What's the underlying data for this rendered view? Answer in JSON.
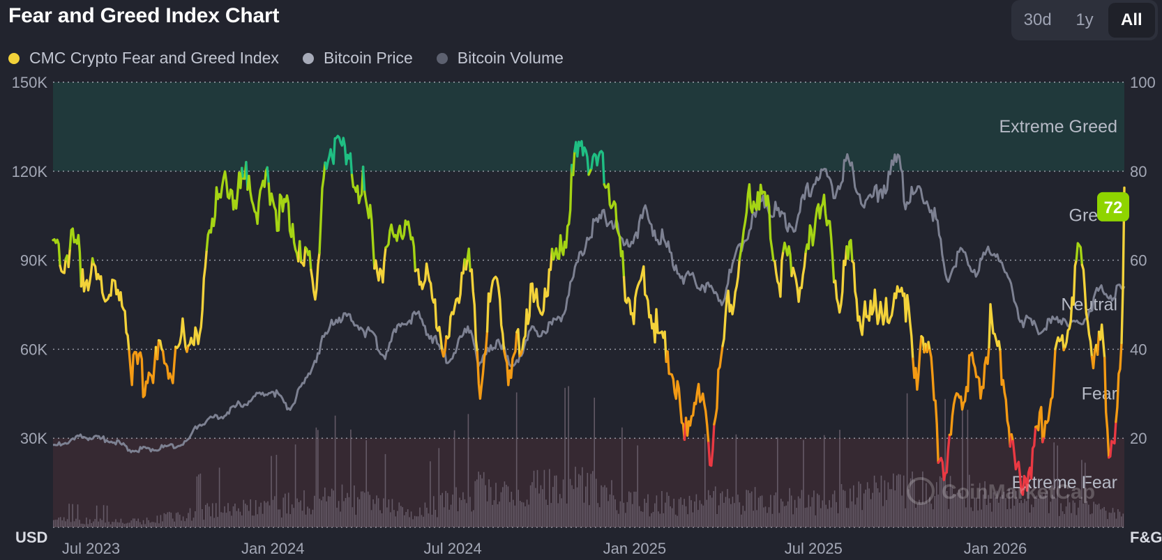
{
  "header": {
    "title": "Fear and Greed Index Chart",
    "ranges": [
      {
        "label": "30d",
        "active": false
      },
      {
        "label": "1y",
        "active": false
      },
      {
        "label": "All",
        "active": true
      }
    ]
  },
  "legend": [
    {
      "label": "CMC Crypto Fear and Greed Index",
      "color": "#f3d23a"
    },
    {
      "label": "Bitcoin Price",
      "color": "#a7abb9"
    },
    {
      "label": "Bitcoin Volume",
      "color": "#5d6170"
    }
  ],
  "watermark": "CoinMarketCap",
  "chart_data": {
    "type": "line",
    "left_axis": {
      "unit": "USD",
      "ticks": [
        "150K",
        "120K",
        "90K",
        "60K",
        "30K"
      ],
      "tick_values": [
        150000,
        120000,
        90000,
        60000,
        30000
      ],
      "range": [
        0,
        150000
      ]
    },
    "right_axis": {
      "unit": "F&G",
      "ticks": [
        "100",
        "80",
        "60",
        "40",
        "20"
      ],
      "tick_values": [
        100,
        80,
        60,
        40,
        20
      ],
      "range": [
        0,
        100
      ]
    },
    "x_ticks": [
      "Jul 2023",
      "Jan 2024",
      "Jul 2024",
      "Jan 2025",
      "Jul 2025",
      "Jan 2026"
    ],
    "x_range": [
      "2023-06-01",
      "2026-05-20"
    ],
    "zones": [
      {
        "label": "Extreme Greed",
        "from": 80,
        "to": 100,
        "color": "#20393b"
      },
      {
        "label": "Greed",
        "from": 60,
        "to": 80,
        "color": ""
      },
      {
        "label": "Neutral",
        "from": 40,
        "to": 60,
        "color": ""
      },
      {
        "label": "Fear",
        "from": 20,
        "to": 40,
        "color": ""
      },
      {
        "label": "Extreme Fear",
        "from": 0,
        "to": 20,
        "color": "#362932"
      }
    ],
    "current_value": "72",
    "current_color": "#8fd400",
    "series": [
      {
        "name": "CMC Crypto Fear and Greed Index",
        "axis": "right",
        "points": [
          [
            "2023-06-01",
            60
          ],
          [
            "2023-06-08",
            63
          ],
          [
            "2023-06-15",
            61
          ],
          [
            "2023-06-22",
            64
          ],
          [
            "2023-07-01",
            58
          ],
          [
            "2023-07-10",
            56
          ],
          [
            "2023-07-20",
            55
          ],
          [
            "2023-08-01",
            52
          ],
          [
            "2023-08-12",
            50
          ],
          [
            "2023-08-20",
            35
          ],
          [
            "2023-09-01",
            34
          ],
          [
            "2023-09-12",
            36
          ],
          [
            "2023-09-20",
            39
          ],
          [
            "2023-10-01",
            36
          ],
          [
            "2023-10-10",
            43
          ],
          [
            "2023-10-20",
            44
          ],
          [
            "2023-10-28",
            40
          ],
          [
            "2023-11-05",
            68
          ],
          [
            "2023-11-15",
            73
          ],
          [
            "2023-11-25",
            77
          ],
          [
            "2023-12-05",
            74
          ],
          [
            "2023-12-15",
            80
          ],
          [
            "2023-12-25",
            72
          ],
          [
            "2024-01-05",
            78
          ],
          [
            "2024-01-15",
            70
          ],
          [
            "2024-01-25",
            72
          ],
          [
            "2024-02-01",
            66
          ],
          [
            "2024-02-08",
            56
          ],
          [
            "2024-02-15",
            60
          ],
          [
            "2024-02-22",
            54
          ],
          [
            "2024-03-01",
            76
          ],
          [
            "2024-03-08",
            84
          ],
          [
            "2024-03-15",
            90
          ],
          [
            "2024-03-22",
            82
          ],
          [
            "2024-04-01",
            78
          ],
          [
            "2024-04-10",
            76
          ],
          [
            "2024-04-20",
            64
          ],
          [
            "2024-04-28",
            58
          ],
          [
            "2024-05-05",
            62
          ],
          [
            "2024-05-15",
            70
          ],
          [
            "2024-05-25",
            64
          ],
          [
            "2024-06-05",
            60
          ],
          [
            "2024-06-15",
            54
          ],
          [
            "2024-06-25",
            46
          ],
          [
            "2024-07-05",
            40
          ],
          [
            "2024-07-12",
            48
          ],
          [
            "2024-07-20",
            62
          ],
          [
            "2024-07-28",
            56
          ],
          [
            "2024-08-05",
            32
          ],
          [
            "2024-08-15",
            48
          ],
          [
            "2024-08-25",
            55
          ],
          [
            "2024-09-05",
            32
          ],
          [
            "2024-09-15",
            42
          ],
          [
            "2024-09-25",
            52
          ],
          [
            "2024-10-05",
            48
          ],
          [
            "2024-10-15",
            58
          ],
          [
            "2024-10-25",
            60
          ],
          [
            "2024-11-01",
            66
          ],
          [
            "2024-11-10",
            82
          ],
          [
            "2024-11-20",
            86
          ],
          [
            "2024-11-30",
            80
          ],
          [
            "2024-12-08",
            82
          ],
          [
            "2024-12-18",
            74
          ],
          [
            "2024-12-28",
            58
          ],
          [
            "2025-01-08",
            50
          ],
          [
            "2025-01-18",
            56
          ],
          [
            "2025-01-28",
            48
          ],
          [
            "2025-02-05",
            40
          ],
          [
            "2025-02-12",
            40
          ],
          [
            "2025-02-20",
            34
          ],
          [
            "2025-02-28",
            18
          ],
          [
            "2025-03-05",
            26
          ],
          [
            "2025-03-12",
            30
          ],
          [
            "2025-03-20",
            25
          ],
          [
            "2025-03-28",
            17
          ],
          [
            "2025-04-05",
            34
          ],
          [
            "2025-04-15",
            50
          ],
          [
            "2025-04-25",
            58
          ],
          [
            "2025-05-05",
            72
          ],
          [
            "2025-05-15",
            76
          ],
          [
            "2025-05-25",
            70
          ],
          [
            "2025-06-05",
            56
          ],
          [
            "2025-06-15",
            62
          ],
          [
            "2025-06-25",
            53
          ],
          [
            "2025-07-05",
            62
          ],
          [
            "2025-07-15",
            74
          ],
          [
            "2025-07-25",
            66
          ],
          [
            "2025-08-05",
            50
          ],
          [
            "2025-08-15",
            62
          ],
          [
            "2025-08-25",
            48
          ],
          [
            "2025-09-05",
            46
          ],
          [
            "2025-09-15",
            52
          ],
          [
            "2025-09-25",
            44
          ],
          [
            "2025-10-05",
            58
          ],
          [
            "2025-10-12",
            50
          ],
          [
            "2025-10-20",
            30
          ],
          [
            "2025-10-28",
            46
          ],
          [
            "2025-11-05",
            36
          ],
          [
            "2025-11-12",
            20
          ],
          [
            "2025-11-20",
            12
          ],
          [
            "2025-11-28",
            24
          ],
          [
            "2025-12-05",
            30
          ],
          [
            "2025-12-15",
            36
          ],
          [
            "2025-12-25",
            30
          ],
          [
            "2026-01-05",
            46
          ],
          [
            "2026-01-12",
            38
          ],
          [
            "2026-01-20",
            32
          ],
          [
            "2026-01-28",
            14
          ],
          [
            "2026-02-05",
            10
          ],
          [
            "2026-02-12",
            14
          ],
          [
            "2026-02-20",
            18
          ],
          [
            "2026-03-01",
            26
          ],
          [
            "2026-03-10",
            34
          ],
          [
            "2026-03-20",
            44
          ],
          [
            "2026-03-28",
            52
          ],
          [
            "2026-04-05",
            62
          ],
          [
            "2026-04-12",
            52
          ],
          [
            "2026-04-20",
            36
          ],
          [
            "2026-04-28",
            42
          ],
          [
            "2026-05-05",
            18
          ],
          [
            "2026-05-12",
            24
          ],
          [
            "2026-05-18",
            40
          ],
          [
            "2026-05-19",
            62
          ],
          [
            "2026-05-20",
            72
          ]
        ]
      },
      {
        "name": "Bitcoin Price",
        "axis": "left",
        "points": [
          [
            "2023-06-01",
            27000
          ],
          [
            "2023-07-01",
            30500
          ],
          [
            "2023-08-01",
            29200
          ],
          [
            "2023-08-20",
            26000
          ],
          [
            "2023-09-15",
            26500
          ],
          [
            "2023-10-15",
            28500
          ],
          [
            "2023-10-25",
            34500
          ],
          [
            "2023-11-15",
            37000
          ],
          [
            "2023-12-10",
            42000
          ],
          [
            "2024-01-10",
            46000
          ],
          [
            "2024-01-25",
            40000
          ],
          [
            "2024-02-10",
            48000
          ],
          [
            "2024-02-28",
            62000
          ],
          [
            "2024-03-14",
            71000
          ],
          [
            "2024-04-01",
            69000
          ],
          [
            "2024-04-20",
            64000
          ],
          [
            "2024-05-01",
            58000
          ],
          [
            "2024-05-20",
            70000
          ],
          [
            "2024-06-05",
            71000
          ],
          [
            "2024-06-25",
            61000
          ],
          [
            "2024-07-05",
            56000
          ],
          [
            "2024-07-28",
            68000
          ],
          [
            "2024-08-05",
            54000
          ],
          [
            "2024-08-25",
            64000
          ],
          [
            "2024-09-06",
            53000
          ],
          [
            "2024-09-28",
            66000
          ],
          [
            "2024-10-15",
            67000
          ],
          [
            "2024-10-28",
            72000
          ],
          [
            "2024-11-12",
            88000
          ],
          [
            "2024-11-22",
            98000
          ],
          [
            "2024-12-05",
            103000
          ],
          [
            "2024-12-17",
            106000
          ],
          [
            "2024-12-30",
            93000
          ],
          [
            "2025-01-20",
            105000
          ],
          [
            "2025-02-05",
            98000
          ],
          [
            "2025-02-28",
            84000
          ],
          [
            "2025-03-15",
            83000
          ],
          [
            "2025-04-08",
            76000
          ],
          [
            "2025-04-25",
            94000
          ],
          [
            "2025-05-22",
            111000
          ],
          [
            "2025-06-05",
            104000
          ],
          [
            "2025-06-20",
            102000
          ],
          [
            "2025-07-14",
            120000
          ],
          [
            "2025-08-01",
            114000
          ],
          [
            "2025-08-14",
            123000
          ],
          [
            "2025-09-01",
            108000
          ],
          [
            "2025-09-20",
            116000
          ],
          [
            "2025-10-06",
            125000
          ],
          [
            "2025-10-10",
            110000
          ],
          [
            "2025-10-28",
            114000
          ],
          [
            "2025-11-10",
            104000
          ],
          [
            "2025-11-21",
            84000
          ],
          [
            "2025-12-05",
            92000
          ],
          [
            "2025-12-20",
            87000
          ],
          [
            "2026-01-10",
            94000
          ],
          [
            "2026-02-05",
            70000
          ],
          [
            "2026-02-25",
            66000
          ],
          [
            "2026-03-15",
            71000
          ],
          [
            "2026-04-05",
            68000
          ],
          [
            "2026-04-25",
            80000
          ],
          [
            "2026-05-05",
            78000
          ],
          [
            "2026-05-20",
            80000
          ]
        ]
      },
      {
        "name": "Bitcoin Volume",
        "axis": "left",
        "points": [
          [
            "2023-06-01",
            3000
          ],
          [
            "2023-09-01",
            2500
          ],
          [
            "2023-11-01",
            7000
          ],
          [
            "2024-01-15",
            9000
          ],
          [
            "2024-03-14",
            14000
          ],
          [
            "2024-06-01",
            6000
          ],
          [
            "2024-08-05",
            16000
          ],
          [
            "2024-11-15",
            18000
          ],
          [
            "2025-01-15",
            10000
          ],
          [
            "2025-04-08",
            12000
          ],
          [
            "2025-07-15",
            11000
          ],
          [
            "2025-10-10",
            17000
          ],
          [
            "2025-11-21",
            16000
          ],
          [
            "2026-02-05",
            13000
          ],
          [
            "2026-05-20",
            5000
          ]
        ]
      }
    ]
  }
}
